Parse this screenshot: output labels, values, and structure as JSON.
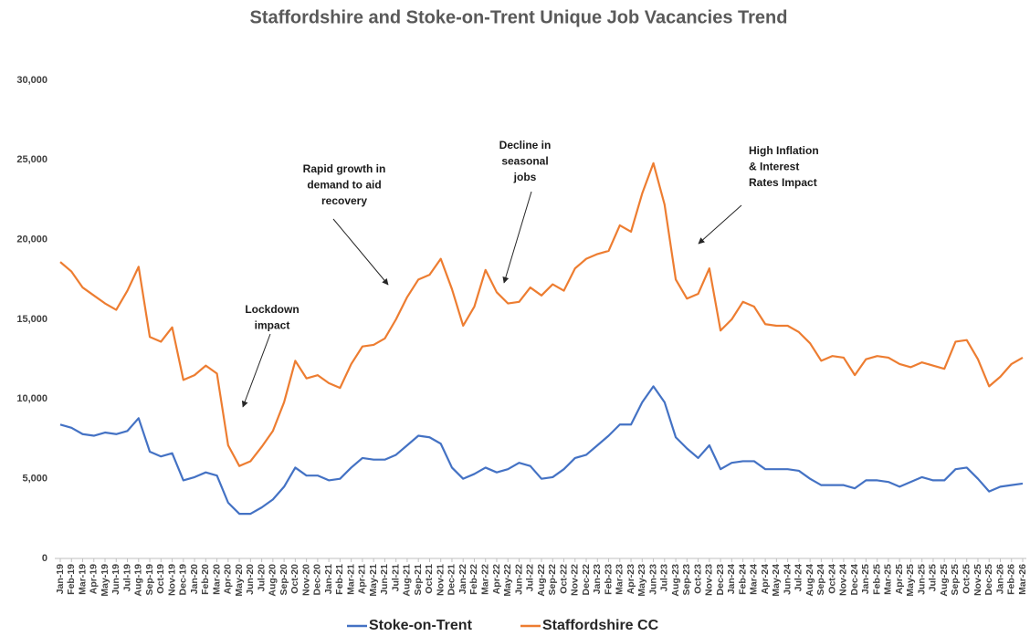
{
  "chart_data": {
    "type": "line",
    "title": "Staffordshire and Stoke-on-Trent Unique Job Vacancies Trend",
    "categories": [
      "Jan-19",
      "Feb-19",
      "Mar-19",
      "Apr-19",
      "May-19",
      "Jun-19",
      "Jul-19",
      "Aug-19",
      "Sep-19",
      "Oct-19",
      "Nov-19",
      "Dec-19",
      "Jan-20",
      "Feb-20",
      "Mar-20",
      "Apr-20",
      "May-20",
      "Jun-20",
      "Jul-20",
      "Aug-20",
      "Sep-20",
      "Oct-20",
      "Nov-20",
      "Dec-20",
      "Jan-21",
      "Feb-21",
      "Mar-21",
      "Apr-21",
      "May-21",
      "Jun-21",
      "Jul-21",
      "Aug-21",
      "Sep-21",
      "Oct-21",
      "Nov-21",
      "Dec-21",
      "Jan-22",
      "Feb-22",
      "Mar-22",
      "Apr-22",
      "May-22",
      "Jun-22",
      "Jul-22",
      "Aug-22",
      "Sep-22",
      "Oct-22",
      "Nov-22",
      "Dec-22",
      "Jan-23",
      "Feb-23",
      "Mar-23",
      "Apr-23",
      "May-23",
      "Jun-23",
      "Jul-23",
      "Aug-23",
      "Sep-23",
      "Oct-23",
      "Nov-23",
      "Dec-23",
      "Jan-24",
      "Feb-24",
      "Mar-24",
      "Apr-24",
      "May-24",
      "Jun-24",
      "Jul-24",
      "Aug-24",
      "Sep-24",
      "Oct-24",
      "Nov-24",
      "Dec-24",
      "Jan-25",
      "Feb-25",
      "Mar-25",
      "Apr-25",
      "May-25",
      "Jun-25",
      "Jul-25",
      "Aug-25",
      "Sep-25",
      "Oct-25",
      "Nov-25",
      "Dec-25",
      "Jan-26",
      "Feb-26",
      "Mar-26"
    ],
    "series": [
      {
        "name": "Stoke-on-Trent",
        "color": "#4472c4",
        "values": [
          8400,
          8200,
          7800,
          7700,
          7900,
          7800,
          8000,
          8800,
          6700,
          6400,
          6600,
          4900,
          5100,
          5400,
          5200,
          3500,
          2800,
          2800,
          3200,
          3700,
          4500,
          5700,
          5200,
          5200,
          4900,
          5000,
          5700,
          6300,
          6200,
          6200,
          6500,
          7100,
          7700,
          7600,
          7200,
          5700,
          5000,
          5300,
          5700,
          5400,
          5600,
          6000,
          5800,
          5000,
          5100,
          5600,
          6300,
          6500,
          7100,
          7700,
          8400,
          8400,
          9800,
          10800,
          9800,
          7600,
          6900,
          6300,
          7100,
          5600,
          6000,
          6100,
          6100,
          5600,
          5600,
          5600,
          5500,
          5000,
          4600,
          4600,
          4600,
          4400,
          4900,
          4900,
          4800,
          4500,
          4800,
          5100,
          4900,
          4900,
          5600,
          5700,
          5000,
          4200,
          4500,
          4600,
          4700
        ]
      },
      {
        "name": "Staffordshire CC",
        "color": "#ed7d31",
        "values": [
          18600,
          18000,
          17000,
          16500,
          16000,
          15600,
          16800,
          18300,
          13900,
          13600,
          14500,
          11200,
          11500,
          12100,
          11600,
          7100,
          5800,
          6100,
          7000,
          8000,
          9800,
          12400,
          11300,
          11500,
          11000,
          10700,
          12200,
          13300,
          13400,
          13800,
          15000,
          16400,
          17500,
          17800,
          18800,
          16900,
          14600,
          15800,
          18100,
          16700,
          16000,
          16100,
          17000,
          16500,
          17200,
          16800,
          18200,
          18800,
          19100,
          19300,
          20900,
          20500,
          22900,
          24800,
          22200,
          17500,
          16300,
          16600,
          18200,
          14300,
          15000,
          16100,
          15800,
          14700,
          14600,
          14600,
          14200,
          13500,
          12400,
          12700,
          12600,
          11500,
          12500,
          12700,
          12600,
          12200,
          12000,
          12300,
          12100,
          11900,
          13600,
          13700,
          12500,
          10800,
          11400,
          12200,
          12600
        ]
      }
    ],
    "ylim": [
      0,
      30000
    ],
    "yticks": [
      0,
      {
        "value": 5000,
        "label": "5,000"
      },
      {
        "value": 10000,
        "label": "10,000"
      },
      {
        "value": 15000,
        "label": "15,000"
      },
      {
        "value": 20000,
        "label": "20,000"
      },
      {
        "value": 25000,
        "label": "25,000"
      },
      {
        "value": 30000,
        "label": "30,000"
      }
    ],
    "grid": false,
    "legend": "bottom",
    "annotations": [
      {
        "lines": [
          "Lockdown",
          "impact"
        ]
      },
      {
        "lines": [
          "Rapid growth in",
          "demand to aid",
          "recovery"
        ]
      },
      {
        "lines": [
          "Decline in",
          "seasonal",
          "jobs"
        ]
      },
      {
        "lines": [
          "High Inflation",
          "& Interest",
          "Rates Impact"
        ]
      }
    ]
  }
}
